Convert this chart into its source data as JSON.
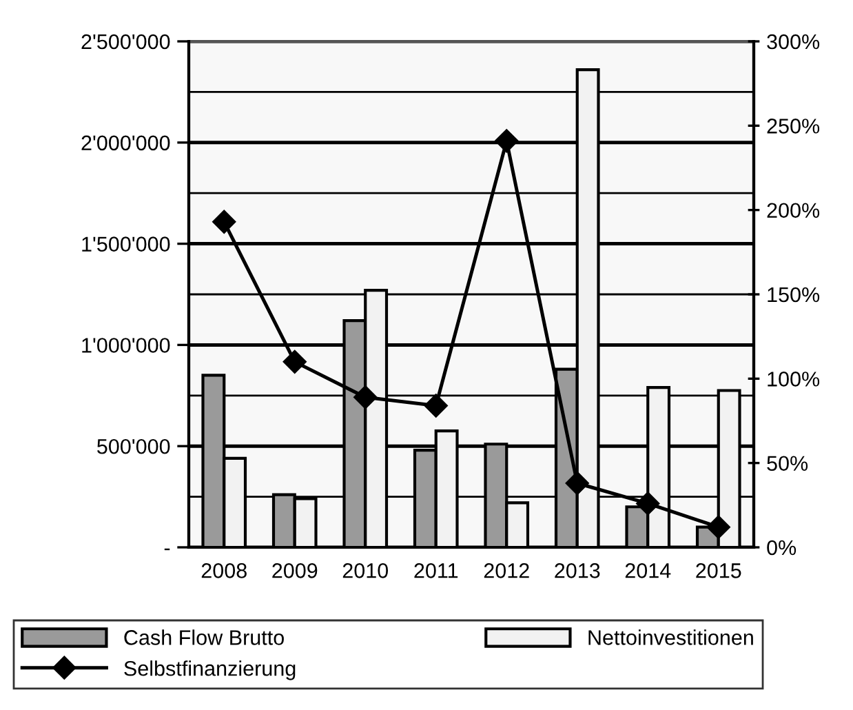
{
  "chart_data": {
    "type": "bar",
    "categories": [
      "2008",
      "2009",
      "2010",
      "2011",
      "2012",
      "2013",
      "2014",
      "2015"
    ],
    "series": [
      {
        "name": "Cash Flow Brutto",
        "color": "#9a9a9a",
        "values": [
          850000,
          260000,
          1120000,
          480000,
          510000,
          880000,
          200000,
          100000
        ]
      },
      {
        "name": "Nettoinvestitionen",
        "color": "#f2f2f2",
        "values": [
          440000,
          240000,
          1270000,
          575000,
          220000,
          2360000,
          790000,
          775000
        ]
      },
      {
        "name": "Selbstfinanzierung",
        "type": "line",
        "axis": "y2",
        "color": "#000000",
        "marker": "diamond",
        "line_style": "solid",
        "values": [
          193,
          110,
          89,
          84,
          241,
          38,
          26,
          12
        ]
      }
    ],
    "ylim": [
      0,
      2500000
    ],
    "yticks": [
      {
        "value": 0,
        "label": "-"
      },
      {
        "value": 250000,
        "label": null
      },
      {
        "value": 500000,
        "label": "500'000"
      },
      {
        "value": 750000,
        "label": null
      },
      {
        "value": 1000000,
        "label": "1'000'000"
      },
      {
        "value": 1250000,
        "label": null
      },
      {
        "value": 1500000,
        "label": "1'500'000"
      },
      {
        "value": 1750000,
        "label": null
      },
      {
        "value": 2000000,
        "label": "2'000'000"
      },
      {
        "value": 2250000,
        "label": null
      },
      {
        "value": 2500000,
        "label": "2'500'000"
      }
    ],
    "y2lim": [
      0,
      300
    ],
    "y2ticks": [
      {
        "value": 0,
        "label": "0%"
      },
      {
        "value": 50,
        "label": "50%"
      },
      {
        "value": 100,
        "label": "100%"
      },
      {
        "value": 150,
        "label": "150%"
      },
      {
        "value": 200,
        "label": "200%"
      },
      {
        "value": 250,
        "label": "250%"
      },
      {
        "value": 300,
        "label": "300%"
      }
    ],
    "grid": "y",
    "legend": "bottom"
  }
}
